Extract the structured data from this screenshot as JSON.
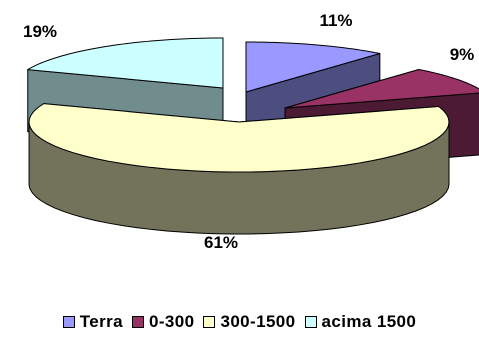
{
  "chart_data": {
    "type": "pie",
    "style": "3d-exploded",
    "categories": [
      "Terra",
      "0-300",
      "300-1500",
      "acima 1500"
    ],
    "values": [
      11,
      9,
      61,
      19
    ],
    "data_labels": [
      "11%",
      "9%",
      "61%",
      "19%"
    ],
    "colors": [
      "#9999ff",
      "#993366",
      "#ffffcc",
      "#ccffff"
    ],
    "legend_position": "bottom",
    "title": "",
    "xlabel": "",
    "ylabel": ""
  }
}
